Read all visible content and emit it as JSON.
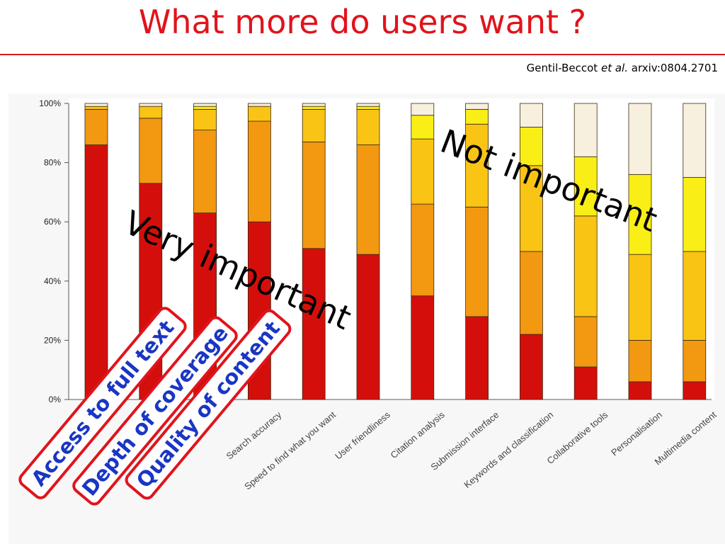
{
  "slide": {
    "title": "What more do users want ?",
    "citation_authors": "Gentil-Beccot",
    "citation_etal": "et al.",
    "citation_ref": "arxiv:0804.2701"
  },
  "chart_data": {
    "type": "bar",
    "stacked": true,
    "percent_axis": true,
    "ylim": [
      0,
      100
    ],
    "yticks": [
      "0%",
      "20%",
      "40%",
      "60%",
      "80%",
      "100%"
    ],
    "grid": false,
    "categories": [
      "Access to full text",
      "Depth of coverage",
      "Quality of content",
      "Search accuracy",
      "Speed to find what you want",
      "User friendliness",
      "Citation analysis",
      "Submission interface",
      "Keywords and classification",
      "Collaborative tools",
      "Personalisation",
      "Multimedia content"
    ],
    "series": [
      {
        "color": "#d40f0b",
        "values": [
          86,
          73,
          63,
          60,
          51,
          49,
          35,
          28,
          22,
          11,
          6,
          6
        ]
      },
      {
        "color": "#f29811",
        "values": [
          12,
          22,
          28,
          34,
          36,
          37,
          31,
          37,
          28,
          17,
          14,
          14
        ]
      },
      {
        "color": "#fac414",
        "values": [
          1,
          4,
          7,
          5,
          11,
          12,
          22,
          28,
          29,
          34,
          29,
          30
        ]
      },
      {
        "color": "#f9ee16",
        "values": [
          0,
          0,
          1,
          0,
          1,
          1,
          8,
          5,
          13,
          20,
          27,
          25
        ]
      },
      {
        "color": "#f8f0df",
        "values": [
          1,
          1,
          1,
          1,
          1,
          1,
          4,
          2,
          8,
          18,
          24,
          25
        ]
      }
    ],
    "annotations": [
      {
        "text": "Very important"
      },
      {
        "text": "Not important"
      }
    ],
    "highlighted_categories": [
      {
        "text": "Access to full text"
      },
      {
        "text": "Depth of coverage"
      },
      {
        "text": "Quality of content"
      }
    ]
  }
}
